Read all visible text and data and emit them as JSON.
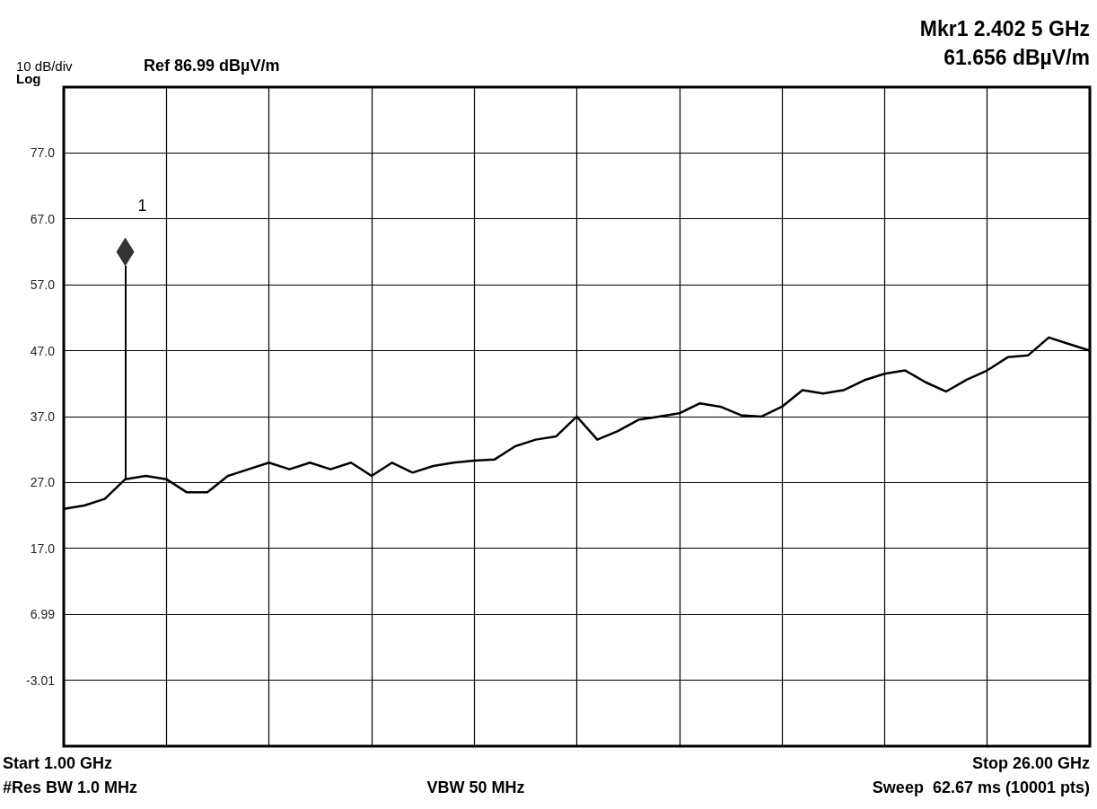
{
  "chart_data": {
    "type": "line",
    "annotations": [
      "10 dB/div",
      "Log",
      "Ref 86.99 dBµV/m",
      "Mkr1 2.402 5 GHz",
      "61.656 dBµV/m",
      "Start 1.00 GHz",
      "Stop 26.00 GHz",
      "#Res BW 1.0 MHz",
      "VBW 50 MHz",
      "Sweep  62.67 ms (10001 pts)",
      "1"
    ],
    "categories": [
      null,
      null,
      null,
      null,
      null,
      null,
      null,
      null,
      null,
      null,
      null,
      null,
      null,
      null,
      null,
      null,
      null,
      null,
      null,
      null,
      null,
      null,
      null,
      null,
      null,
      null,
      null,
      null,
      null,
      null,
      null,
      null,
      null,
      null,
      null,
      null,
      null,
      null,
      null,
      null,
      null,
      null,
      null,
      null,
      null,
      null,
      null,
      null,
      null,
      null,
      null
    ],
    "ylim": [
      -13.01,
      86.99
    ],
    "yticks": [
      {
        "value": -13.01,
        "label": null
      },
      {
        "value": -3.01,
        "label": "-3.01"
      },
      6.99,
      {
        "value": 17,
        "label": "17.0"
      },
      {
        "value": 27,
        "label": "27.0"
      },
      {
        "value": 37,
        "label": "37.0"
      },
      {
        "value": 47,
        "label": "47.0"
      },
      {
        "value": 57,
        "label": "57.0"
      },
      {
        "value": 67,
        "label": "67.0"
      },
      {
        "value": 77,
        "label": "77.0"
      },
      {
        "value": 86.99,
        "label": null
      }
    ],
    "grid": true,
    "marker": "none",
    "line_style": "solid",
    "series": [
      {
        "color": "#000000",
        "values": [
          23,
          23.5,
          24.5,
          27.5,
          28,
          27.5,
          25.5,
          25.5,
          28,
          29,
          30,
          29,
          30,
          29,
          30,
          28,
          30,
          28.5,
          29.5,
          30,
          30.3,
          30.5,
          32.5,
          33.5,
          34,
          37,
          33.5,
          34.8,
          36.5,
          37,
          37.5,
          39,
          38.5,
          37.2,
          37,
          38.5,
          41,
          40.5,
          41,
          42.5,
          43.5,
          44,
          42.2,
          40.8,
          42.6,
          44,
          46,
          46.3,
          49,
          48,
          47
        ]
      },
      {
        "type": "scatter",
        "color": "#000000",
        "marker": "diamond",
        "values": [
          null,
          null,
          null,
          62,
          null,
          null,
          null,
          null,
          null,
          null,
          null,
          null,
          null,
          null,
          null,
          null,
          null,
          null,
          null,
          null,
          null,
          null,
          null,
          null,
          null,
          null,
          null,
          null,
          null,
          null,
          null,
          null,
          null,
          null,
          null,
          null,
          null,
          null,
          null,
          null,
          null,
          null,
          null,
          null,
          null,
          null,
          null,
          null,
          null,
          null,
          null
        ]
      }
    ]
  }
}
